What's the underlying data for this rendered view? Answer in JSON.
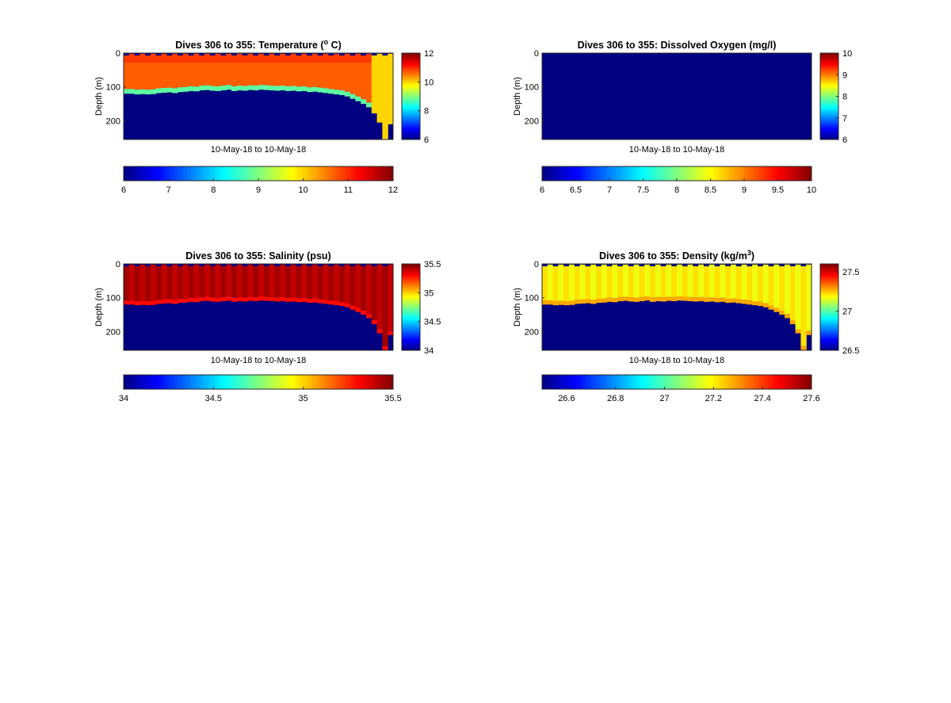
{
  "chart_data": [
    {
      "type": "heatmap",
      "title": "Dives 306 to 355: Temperature (° C)",
      "title_parts": [
        "Dives 306 to 355: Temperature (",
        "o",
        " C)"
      ],
      "ylabel": "Depth (m)",
      "xlabel": "10-May-18 to 10-May-18",
      "ylim": [
        0,
        255
      ],
      "yticks": [
        "0",
        "100",
        "200"
      ],
      "clim": [
        6,
        12
      ],
      "side_colorbar_ticks": [
        "6",
        "8",
        "10",
        "12"
      ],
      "bottom_colorbar_ticks": [
        "6",
        "7",
        "8",
        "9",
        "10",
        "11",
        "12"
      ],
      "n_profiles": 50,
      "profile_bottom_depth_m": [
        120,
        120,
        122,
        121,
        122,
        121,
        118,
        117,
        116,
        118,
        115,
        114,
        112,
        113,
        110,
        109,
        111,
        112,
        110,
        108,
        112,
        110,
        111,
        109,
        110,
        108,
        109,
        110,
        111,
        110,
        112,
        111,
        113,
        112,
        115,
        114,
        116,
        118,
        120,
        122,
        124,
        128,
        135,
        142,
        150,
        160,
        178,
        205,
        255,
        210
      ],
      "surface_value": 10.9,
      "thermocline_value": 8.8,
      "deep_value": 6.0,
      "deepest_profiles_value": 10.0
    },
    {
      "type": "heatmap",
      "title": "Dives 306 to 355: Dissolved Oxygen (mg/l)",
      "title_parts": [
        "Dives 306 to 355: Dissolved Oxygen (mg/l)",
        "",
        ""
      ],
      "ylabel": "Depth (m)",
      "xlabel": "10-May-18 to 10-May-18",
      "ylim": [
        0,
        255
      ],
      "yticks": [
        "0",
        "100",
        "200"
      ],
      "clim": [
        6,
        10
      ],
      "side_colorbar_ticks": [
        "6",
        "7",
        "8",
        "9",
        "10"
      ],
      "bottom_colorbar_ticks": [
        "6",
        "6.5",
        "7",
        "7.5",
        "8",
        "8.5",
        "9",
        "9.5",
        "10"
      ],
      "uniform_value": 6.0
    },
    {
      "type": "heatmap",
      "title": "Dives 306 to 355: Salinity (psu)",
      "title_parts": [
        "Dives 306 to 355: Salinity (psu)",
        "",
        ""
      ],
      "ylabel": "Depth (m)",
      "xlabel": "10-May-18 to 10-May-18",
      "ylim": [
        0,
        255
      ],
      "yticks": [
        "0",
        "100",
        "200"
      ],
      "clim": [
        34,
        35.5
      ],
      "side_colorbar_ticks": [
        "34",
        "34.5",
        "35",
        "35.5"
      ],
      "bottom_colorbar_ticks": [
        "34",
        "34.5",
        "35",
        "35.5"
      ],
      "surface_value": 35.45,
      "lower_layer_value": 35.3,
      "deep_value": 34.0
    },
    {
      "type": "heatmap",
      "title": "Dives 306 to 355: Density (kg/m³)",
      "title_parts": [
        "Dives 306 to 355: Density (kg/m",
        "3",
        ")"
      ],
      "ylabel": "Depth (m)",
      "xlabel": "10-May-18 to 10-May-18",
      "ylim": [
        0,
        255
      ],
      "yticks": [
        "0",
        "100",
        "200"
      ],
      "clim": [
        26.5,
        27.6
      ],
      "side_colorbar_ticks": [
        "26.5",
        "27",
        "27.5"
      ],
      "bottom_colorbar_ticks": [
        "26.6",
        "26.8",
        "27",
        "27.2",
        "27.4",
        "27.6"
      ],
      "surface_value": 27.22,
      "lower_layer_value": 27.28,
      "deep_value": 26.5
    }
  ]
}
